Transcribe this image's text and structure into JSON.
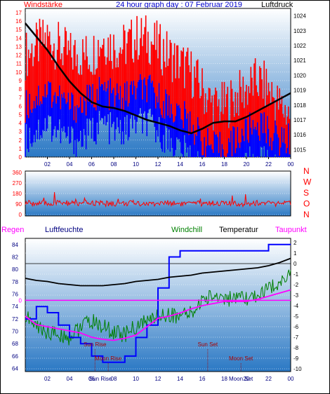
{
  "header": {
    "left_label": "Windstärke",
    "title": "24 hour graph day : 07 Februar 2019",
    "right_label": "Luftdruck"
  },
  "x_tick_labels": [
    "02",
    "04",
    "06",
    "08",
    "10",
    "12",
    "14",
    "16",
    "18",
    "20",
    "22",
    "00"
  ],
  "colors": {
    "wind_gust": "#ff0000",
    "wind_avg": "#0000ff",
    "pressure": "#000000",
    "direction": "#ff0000",
    "humidity": "#0000ff",
    "windchill": "#008000",
    "temperature": "#000000",
    "dewpoint": "#ff00ff",
    "label_red": "#ff0000",
    "label_blue": "#0000cc",
    "label_green": "#008000",
    "label_magenta": "#ff00ff",
    "label_dark": "#000080",
    "panel_top": "#ffffff",
    "panel_bottom": "#2a78c4",
    "grid": "#ffffff",
    "event_marker": "#aa0000"
  },
  "chart_data": [
    {
      "type": "line",
      "name": "wind-pressure",
      "left_axis": {
        "label": "Windstärke",
        "ylim": [
          0,
          17
        ],
        "ticks": [
          0,
          1,
          2,
          3,
          4,
          5,
          6,
          7,
          8,
          9,
          10,
          11,
          12,
          13,
          14,
          15,
          16,
          17
        ]
      },
      "right_axis": {
        "label": "Luftdruck",
        "ylim": [
          1014.5,
          1024.5
        ],
        "ticks": [
          1015,
          1016,
          1017,
          1018,
          1019,
          1020,
          1021,
          1022,
          1023,
          1024
        ]
      },
      "x": [
        0,
        1,
        2,
        3,
        4,
        5,
        6,
        7,
        8,
        9,
        10,
        11,
        12,
        13,
        14,
        15,
        16,
        17,
        18,
        19,
        20,
        21,
        22,
        23,
        24
      ],
      "series": [
        {
          "name": "Luftdruck",
          "axis": "right",
          "values": [
            1023.5,
            1022.6,
            1021.7,
            1020.6,
            1019.6,
            1018.8,
            1018.2,
            1017.9,
            1017.8,
            1017.6,
            1017.3,
            1017.0,
            1016.8,
            1016.6,
            1016.3,
            1016.1,
            1016.4,
            1016.8,
            1016.9,
            1016.9,
            1017.2,
            1017.6,
            1018.0,
            1018.4,
            1018.8
          ]
        },
        {
          "name": "Windböen",
          "axis": "left",
          "values": [
            12,
            13,
            14,
            13,
            12,
            12,
            12,
            14,
            13,
            13,
            14,
            14,
            13,
            12,
            11,
            10,
            8,
            6,
            6,
            7,
            8,
            9,
            8,
            6,
            5
          ]
        },
        {
          "name": "Windmittel",
          "axis": "left",
          "values": [
            6,
            7,
            8,
            7,
            6,
            6,
            7,
            8,
            7,
            7,
            8,
            8,
            7,
            6,
            5,
            4,
            2,
            1,
            1,
            2,
            3,
            4,
            3,
            2,
            2
          ]
        }
      ]
    },
    {
      "type": "line",
      "name": "wind-direction",
      "right_labels": [
        "N",
        "W",
        "S",
        "O",
        "N"
      ],
      "ylim": [
        0,
        360
      ],
      "ticks": [
        0,
        90,
        180,
        270,
        360
      ],
      "x": [
        0,
        1,
        2,
        3,
        4,
        5,
        6,
        7,
        8,
        9,
        10,
        11,
        12,
        13,
        14,
        15,
        16,
        17,
        18,
        19,
        20,
        21,
        22,
        23,
        24
      ],
      "series": [
        {
          "name": "Windrichtung",
          "values": [
            100,
            95,
            90,
            100,
            95,
            90,
            100,
            95,
            90,
            95,
            100,
            90,
            95,
            100,
            95,
            90,
            95,
            100,
            95,
            90,
            95,
            100,
            95,
            90,
            95
          ]
        }
      ]
    },
    {
      "type": "line",
      "name": "temperature-humidity",
      "labels": {
        "regen": "Regen",
        "luftfeuchte": "Luftfeuchte",
        "windchill": "Windchill",
        "temperatur": "Temperatur",
        "taupunkt": "Taupunkt"
      },
      "left_axis": {
        "ylim": [
          63.5,
          85
        ],
        "ticks": [
          64,
          66,
          68,
          70,
          72,
          74,
          76,
          78,
          80,
          82,
          84
        ]
      },
      "rain_axis_label": "0",
      "right_axis": {
        "ylim": [
          -10,
          2
        ],
        "ticks": [
          -10,
          -9,
          -8,
          -7,
          -6,
          -5,
          -4,
          -3,
          -2,
          -1,
          0,
          1,
          2
        ]
      },
      "x": [
        0,
        1,
        2,
        3,
        4,
        5,
        6,
        7,
        8,
        9,
        10,
        11,
        12,
        13,
        14,
        15,
        16,
        17,
        18,
        19,
        20,
        21,
        22,
        23,
        24
      ],
      "series": [
        {
          "name": "Luftfeuchte",
          "axis": "left",
          "values": [
            72,
            74,
            73,
            71,
            69,
            68,
            66,
            65,
            65,
            66,
            69,
            71,
            77,
            82,
            83,
            83,
            83,
            83,
            83,
            83,
            83,
            83,
            84,
            84,
            84
          ]
        },
        {
          "name": "Temperatur",
          "axis": "right",
          "values": [
            -1.4,
            -1.6,
            -1.7,
            -1.9,
            -2.0,
            -2.1,
            -2.1,
            -2.1,
            -2.0,
            -1.9,
            -1.7,
            -1.6,
            -1.5,
            -1.3,
            -1.2,
            -1.1,
            -0.9,
            -0.8,
            -0.7,
            -0.6,
            -0.5,
            -0.4,
            -0.2,
            0.1,
            0.5
          ]
        },
        {
          "name": "Windchill",
          "axis": "right",
          "values": [
            -5.0,
            -6.0,
            -6.5,
            -6.8,
            -7.0,
            -6.0,
            -5.5,
            -6.0,
            -6.5,
            -6.8,
            -6.0,
            -5.5,
            -5.0,
            -4.8,
            -5.0,
            -4.8,
            -3.5,
            -3.0,
            -3.2,
            -3.5,
            -3.4,
            -3.0,
            -2.5,
            -1.6,
            -1.0
          ]
        },
        {
          "name": "Taupunkt",
          "axis": "right",
          "values": [
            -5.0,
            -5.8,
            -6.0,
            -6.2,
            -6.4,
            -6.6,
            -7.0,
            -7.2,
            -7.3,
            -7.1,
            -6.8,
            -6.0,
            -5.2,
            -5.0,
            -4.7,
            -4.3,
            -4.0,
            -3.8,
            -3.6,
            -3.6,
            -3.6,
            -3.4,
            -3.1,
            -2.8,
            -2.5
          ]
        }
      ],
      "rain": [
        0,
        0,
        0,
        0,
        0,
        0,
        0,
        0,
        0,
        0,
        0,
        0,
        0,
        0,
        0,
        0,
        0,
        0,
        0,
        0,
        0,
        0,
        0,
        0,
        0
      ],
      "events": [
        {
          "label": "Sun Rise",
          "x": 6.3
        },
        {
          "label": "Moon Rise",
          "x": 7.5
        },
        {
          "label": "Sun Set",
          "x": 16.5
        },
        {
          "label": "Moon Set",
          "x": 19.5
        }
      ],
      "x_tick_labels": [
        "02",
        "04",
        "06",
        "Sun Rise",
        "08",
        "10",
        "12",
        "14",
        "16",
        "18",
        "Moon Set",
        "20",
        "22",
        "00"
      ]
    }
  ]
}
